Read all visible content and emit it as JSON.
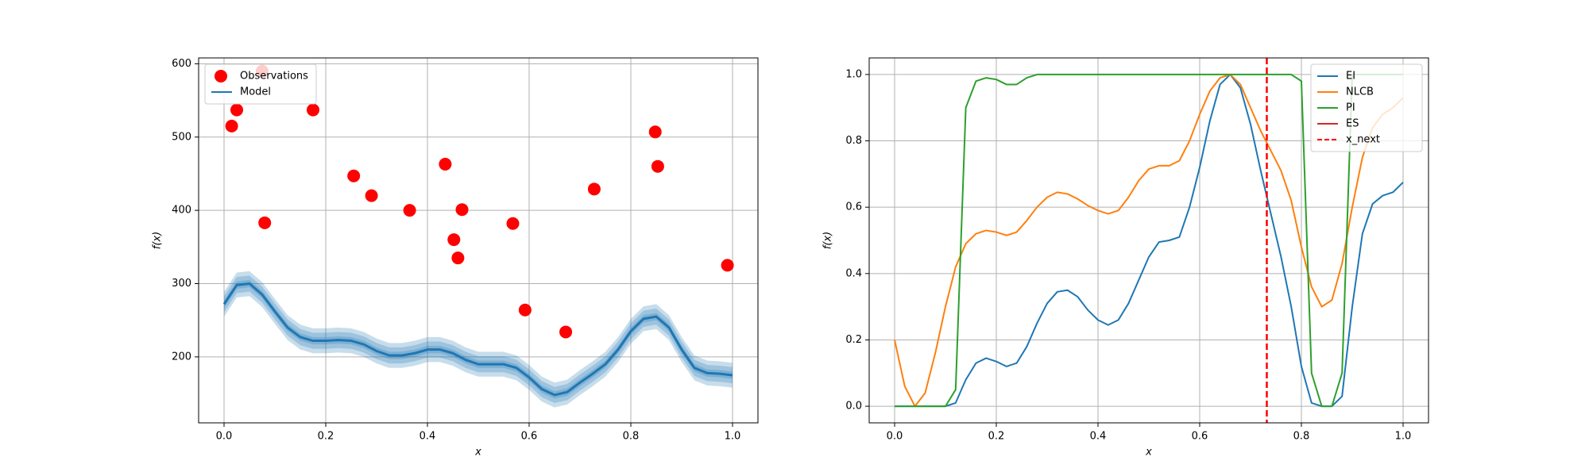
{
  "chart_data": [
    {
      "type": "scatter",
      "xlabel": "x",
      "ylabel": "f(x)",
      "xlim": [
        -0.05,
        1.05
      ],
      "ylim": [
        110,
        608
      ],
      "xticks": [
        {
          "value": 0,
          "label": "0.0"
        },
        {
          "value": 0.2,
          "label": "0.2"
        },
        {
          "value": 0.4,
          "label": "0.4"
        },
        {
          "value": 0.6,
          "label": "0.6"
        },
        {
          "value": 0.8,
          "label": "0.8"
        },
        {
          "value": 1,
          "label": "1.0"
        }
      ],
      "yticks": [
        200,
        300,
        400,
        500,
        600
      ],
      "grid": true,
      "legend": "upper left",
      "series": [
        {
          "name": "Observations",
          "color": "#ff0000",
          "kind": "points",
          "x": [
            0.015,
            0.025,
            0.075,
            0.08,
            0.175,
            0.255,
            0.29,
            0.365,
            0.435,
            0.452,
            0.46,
            0.468,
            0.568,
            0.592,
            0.672,
            0.728,
            0.848,
            0.853,
            0.99
          ],
          "values": [
            515,
            537,
            590,
            383,
            537,
            447,
            420,
            400,
            463,
            360,
            335,
            401,
            382,
            264,
            234,
            429,
            507,
            460,
            325
          ]
        },
        {
          "name": "Model",
          "color": "#1f77b4",
          "kind": "line",
          "bands": [
            5,
            11,
            17
          ],
          "x": [
            0,
            0.025,
            0.05,
            0.075,
            0.1,
            0.125,
            0.15,
            0.175,
            0.2,
            0.225,
            0.25,
            0.275,
            0.3,
            0.325,
            0.35,
            0.375,
            0.4,
            0.425,
            0.45,
            0.475,
            0.5,
            0.525,
            0.55,
            0.575,
            0.6,
            0.625,
            0.65,
            0.675,
            0.7,
            0.725,
            0.75,
            0.775,
            0.8,
            0.825,
            0.85,
            0.875,
            0.9,
            0.925,
            0.95,
            0.975,
            1
          ],
          "values": [
            272,
            298,
            300,
            285,
            262,
            240,
            227,
            222,
            222,
            223,
            222,
            217,
            208,
            202,
            202,
            205,
            210,
            210,
            205,
            196,
            190,
            190,
            190,
            185,
            172,
            156,
            148,
            152,
            165,
            177,
            190,
            210,
            235,
            252,
            255,
            240,
            210,
            185,
            178,
            177,
            175
          ]
        }
      ]
    },
    {
      "type": "line",
      "xlabel": "x",
      "ylabel": "f(x)",
      "xlim": [
        -0.05,
        1.05
      ],
      "ylim": [
        -0.05,
        1.05
      ],
      "xticks": [
        {
          "value": 0,
          "label": "0.0"
        },
        {
          "value": 0.2,
          "label": "0.2"
        },
        {
          "value": 0.4,
          "label": "0.4"
        },
        {
          "value": 0.6,
          "label": "0.6"
        },
        {
          "value": 0.8,
          "label": "0.8"
        },
        {
          "value": 1,
          "label": "1.0"
        }
      ],
      "yticks": [
        {
          "value": 0,
          "label": "0.0"
        },
        {
          "value": 0.2,
          "label": "0.2"
        },
        {
          "value": 0.4,
          "label": "0.4"
        },
        {
          "value": 0.6,
          "label": "0.6"
        },
        {
          "value": 0.8,
          "label": "0.8"
        },
        {
          "value": 1,
          "label": "1.0"
        }
      ],
      "grid": true,
      "legend": "upper right",
      "x": [
        0,
        0.02,
        0.04,
        0.06,
        0.08,
        0.1,
        0.12,
        0.14,
        0.16,
        0.18,
        0.2,
        0.22,
        0.24,
        0.26,
        0.28,
        0.3,
        0.32,
        0.34,
        0.36,
        0.38,
        0.4,
        0.42,
        0.44,
        0.46,
        0.48,
        0.5,
        0.52,
        0.54,
        0.56,
        0.58,
        0.6,
        0.62,
        0.64,
        0.66,
        0.68,
        0.7,
        0.72,
        0.74,
        0.76,
        0.78,
        0.8,
        0.82,
        0.84,
        0.86,
        0.88,
        0.9,
        0.92,
        0.94,
        0.96,
        0.98,
        1
      ],
      "series": [
        {
          "name": "EI",
          "color": "#1f77b4",
          "kind": "line",
          "values": [
            0,
            0,
            0,
            0,
            0,
            0,
            0.01,
            0.08,
            0.13,
            0.145,
            0.135,
            0.12,
            0.13,
            0.18,
            0.25,
            0.31,
            0.345,
            0.35,
            0.33,
            0.29,
            0.26,
            0.245,
            0.26,
            0.31,
            0.38,
            0.45,
            0.495,
            0.5,
            0.51,
            0.6,
            0.72,
            0.86,
            0.97,
            1.0,
            0.96,
            0.85,
            0.71,
            0.58,
            0.45,
            0.3,
            0.12,
            0.01,
            0,
            0,
            0.03,
            0.3,
            0.52,
            0.61,
            0.635,
            0.645,
            0.675
          ]
        },
        {
          "name": "NLCB",
          "color": "#ff7f0e",
          "kind": "line",
          "values": [
            0.2,
            0.06,
            0,
            0.04,
            0.16,
            0.3,
            0.42,
            0.49,
            0.52,
            0.53,
            0.525,
            0.515,
            0.525,
            0.56,
            0.6,
            0.63,
            0.645,
            0.64,
            0.625,
            0.605,
            0.59,
            0.58,
            0.59,
            0.63,
            0.68,
            0.715,
            0.725,
            0.725,
            0.74,
            0.8,
            0.88,
            0.95,
            0.99,
            1.0,
            0.97,
            0.9,
            0.83,
            0.77,
            0.71,
            0.62,
            0.48,
            0.36,
            0.3,
            0.32,
            0.43,
            0.6,
            0.75,
            0.84,
            0.88,
            0.9,
            0.93
          ]
        },
        {
          "name": "PI",
          "color": "#2ca02c",
          "kind": "line",
          "values": [
            0,
            0,
            0,
            0,
            0,
            0,
            0.05,
            0.9,
            0.98,
            0.99,
            0.985,
            0.97,
            0.97,
            0.99,
            1.0,
            1.0,
            1.0,
            1.0,
            1.0,
            1.0,
            1.0,
            1.0,
            1.0,
            1.0,
            1.0,
            1.0,
            1.0,
            1.0,
            1.0,
            1.0,
            1.0,
            1.0,
            1.0,
            1.0,
            1.0,
            1.0,
            1.0,
            1.0,
            1.0,
            1.0,
            0.98,
            0.1,
            0,
            0,
            0.1,
            1.0,
            1.0,
            1.0,
            1.0,
            1.0,
            1.0
          ]
        },
        {
          "name": "ES",
          "color": "#d62728",
          "kind": "line",
          "values": [
            null,
            null,
            null,
            null,
            null,
            null,
            null,
            null,
            null,
            null,
            null,
            null,
            null,
            null,
            null,
            null,
            null,
            null,
            null,
            null,
            null,
            null,
            null,
            null,
            null,
            null,
            null,
            null,
            null,
            null,
            null,
            null,
            null,
            null,
            null,
            null,
            null,
            null,
            null,
            null,
            null,
            null,
            null,
            null,
            null,
            null,
            null,
            null,
            null,
            null,
            null
          ]
        },
        {
          "name": "x_next",
          "color": "#ff0000",
          "kind": "vline",
          "x": 0.732
        }
      ]
    }
  ]
}
